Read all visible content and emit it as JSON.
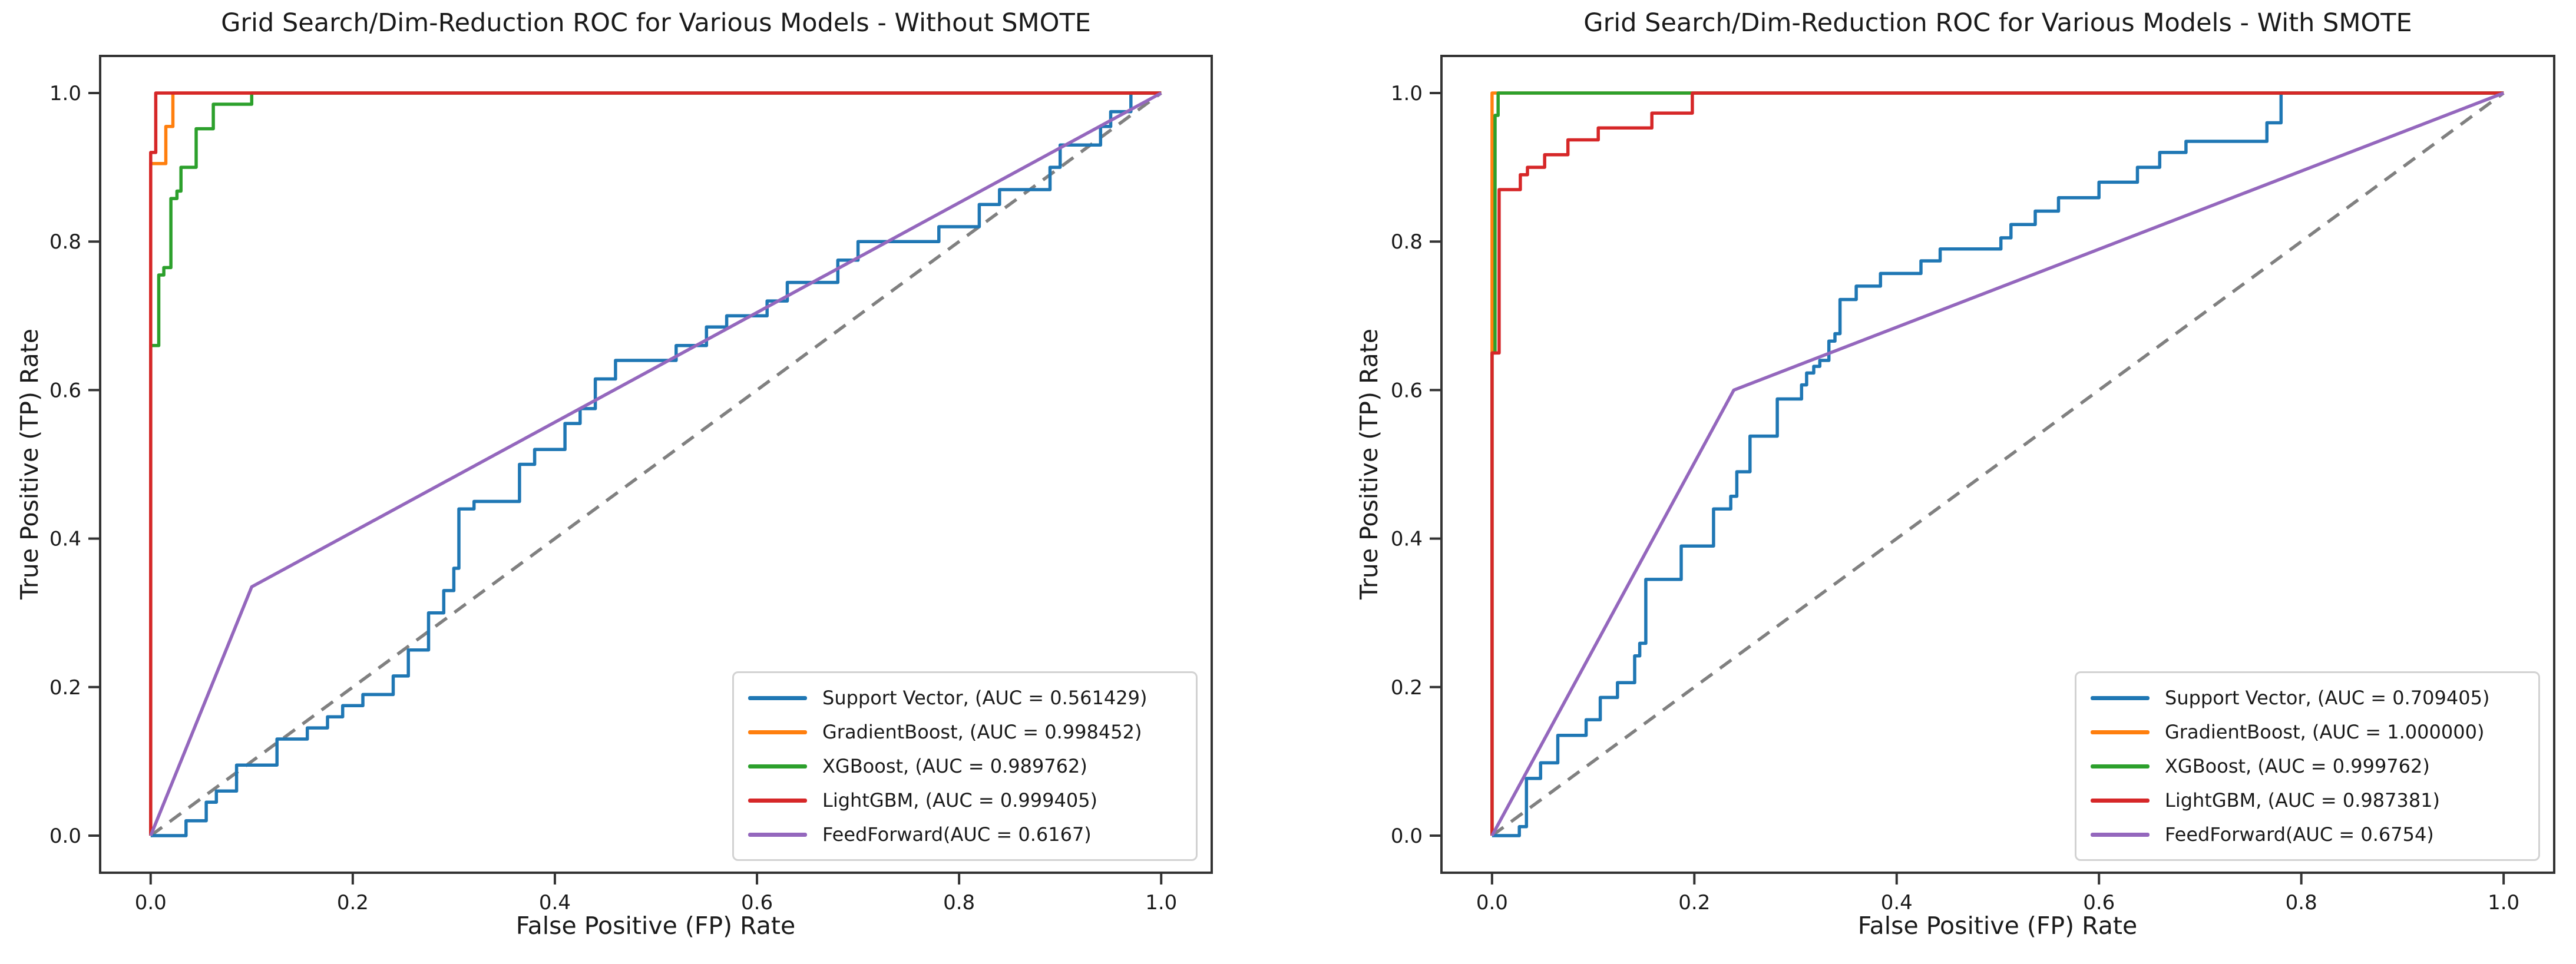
{
  "page": {
    "background": "#ffffff"
  },
  "chart_data": [
    {
      "type": "line",
      "subtype": "roc-curve",
      "title": "Grid Search/Dim-Reduction ROC for Various Models - Without SMOTE",
      "xlabel": "False Positive (FP) Rate",
      "ylabel": "True Positive (TP) Rate",
      "x_ticks": [
        "0.0",
        "0.2",
        "0.4",
        "0.6",
        "0.8",
        "1.0"
      ],
      "y_ticks": [
        "0.0",
        "0.2",
        "0.4",
        "0.6",
        "0.8",
        "1.0"
      ],
      "xlim": [
        -0.05,
        1.05
      ],
      "ylim": [
        -0.05,
        1.05
      ],
      "grid": false,
      "legend_position": "lower right",
      "axis_color": "#333333",
      "chance_line": {
        "key": "chance-diagonal",
        "color": "#808080",
        "dashed": true,
        "points": [
          [
            0,
            0
          ],
          [
            1,
            1
          ]
        ]
      },
      "series": [
        {
          "key": "support-vector",
          "name": "Support Vector",
          "auc": "0.561429",
          "legend_label": "Support Vector, (AUC = 0.561429)",
          "color": "#1f77b4",
          "points": [
            [
              0,
              0
            ],
            [
              0.035,
              0
            ],
            [
              0.035,
              0.02
            ],
            [
              0.055,
              0.02
            ],
            [
              0.055,
              0.045
            ],
            [
              0.065,
              0.045
            ],
            [
              0.065,
              0.06
            ],
            [
              0.085,
              0.06
            ],
            [
              0.085,
              0.095
            ],
            [
              0.125,
              0.095
            ],
            [
              0.125,
              0.13
            ],
            [
              0.155,
              0.13
            ],
            [
              0.155,
              0.145
            ],
            [
              0.175,
              0.145
            ],
            [
              0.175,
              0.16
            ],
            [
              0.19,
              0.16
            ],
            [
              0.19,
              0.175
            ],
            [
              0.21,
              0.175
            ],
            [
              0.21,
              0.19
            ],
            [
              0.24,
              0.19
            ],
            [
              0.24,
              0.215
            ],
            [
              0.255,
              0.215
            ],
            [
              0.255,
              0.25
            ],
            [
              0.275,
              0.25
            ],
            [
              0.275,
              0.3
            ],
            [
              0.29,
              0.3
            ],
            [
              0.29,
              0.33
            ],
            [
              0.3,
              0.33
            ],
            [
              0.3,
              0.36
            ],
            [
              0.305,
              0.36
            ],
            [
              0.305,
              0.44
            ],
            [
              0.32,
              0.44
            ],
            [
              0.32,
              0.45
            ],
            [
              0.365,
              0.45
            ],
            [
              0.365,
              0.5
            ],
            [
              0.38,
              0.5
            ],
            [
              0.38,
              0.52
            ],
            [
              0.41,
              0.52
            ],
            [
              0.41,
              0.555
            ],
            [
              0.425,
              0.555
            ],
            [
              0.425,
              0.575
            ],
            [
              0.44,
              0.575
            ],
            [
              0.44,
              0.615
            ],
            [
              0.46,
              0.615
            ],
            [
              0.46,
              0.64
            ],
            [
              0.52,
              0.64
            ],
            [
              0.52,
              0.66
            ],
            [
              0.55,
              0.66
            ],
            [
              0.55,
              0.685
            ],
            [
              0.57,
              0.685
            ],
            [
              0.57,
              0.7
            ],
            [
              0.61,
              0.7
            ],
            [
              0.61,
              0.72
            ],
            [
              0.63,
              0.72
            ],
            [
              0.63,
              0.745
            ],
            [
              0.68,
              0.745
            ],
            [
              0.68,
              0.775
            ],
            [
              0.7,
              0.775
            ],
            [
              0.7,
              0.8
            ],
            [
              0.78,
              0.8
            ],
            [
              0.78,
              0.82
            ],
            [
              0.82,
              0.82
            ],
            [
              0.82,
              0.85
            ],
            [
              0.84,
              0.85
            ],
            [
              0.84,
              0.87
            ],
            [
              0.89,
              0.87
            ],
            [
              0.89,
              0.9
            ],
            [
              0.9,
              0.9
            ],
            [
              0.9,
              0.93
            ],
            [
              0.94,
              0.93
            ],
            [
              0.94,
              0.955
            ],
            [
              0.95,
              0.955
            ],
            [
              0.95,
              0.975
            ],
            [
              0.97,
              0.975
            ],
            [
              0.97,
              1.0
            ],
            [
              1,
              1
            ]
          ]
        },
        {
          "key": "gradient-boost",
          "name": "GradientBoost",
          "auc": "0.998452",
          "legend_label": "GradientBoost, (AUC = 0.998452)",
          "color": "#ff7f0e",
          "points": [
            [
              0,
              0
            ],
            [
              0,
              0.905
            ],
            [
              0.015,
              0.905
            ],
            [
              0.015,
              0.955
            ],
            [
              0.022,
              0.955
            ],
            [
              0.022,
              1.0
            ],
            [
              1,
              1
            ]
          ]
        },
        {
          "key": "xgboost",
          "name": "XGBoost",
          "auc": "0.989762",
          "legend_label": "XGBoost, (AUC = 0.989762)",
          "color": "#2ca02c",
          "points": [
            [
              0,
              0
            ],
            [
              0,
              0.66
            ],
            [
              0.008,
              0.66
            ],
            [
              0.008,
              0.755
            ],
            [
              0.013,
              0.755
            ],
            [
              0.013,
              0.765
            ],
            [
              0.02,
              0.765
            ],
            [
              0.02,
              0.858
            ],
            [
              0.026,
              0.858
            ],
            [
              0.026,
              0.868
            ],
            [
              0.03,
              0.868
            ],
            [
              0.03,
              0.9
            ],
            [
              0.045,
              0.9
            ],
            [
              0.045,
              0.952
            ],
            [
              0.062,
              0.952
            ],
            [
              0.062,
              0.985
            ],
            [
              0.1,
              0.985
            ],
            [
              0.1,
              1.0
            ],
            [
              1,
              1
            ]
          ]
        },
        {
          "key": "lightgbm",
          "name": "LightGBM",
          "auc": "0.999405",
          "legend_label": "LightGBM, (AUC = 0.999405)",
          "color": "#d62728",
          "points": [
            [
              0,
              0
            ],
            [
              0,
              0.92
            ],
            [
              0.005,
              0.92
            ],
            [
              0.005,
              1.0
            ],
            [
              1,
              1
            ]
          ]
        },
        {
          "key": "feedforward",
          "name": "FeedForward",
          "auc": "0.6167",
          "legend_label": "FeedForward(AUC = 0.6167)",
          "color": "#9467bd",
          "points": [
            [
              0,
              0
            ],
            [
              0.1,
              0.335
            ],
            [
              1,
              1
            ]
          ]
        }
      ]
    },
    {
      "type": "line",
      "subtype": "roc-curve",
      "title": "Grid Search/Dim-Reduction ROC for Various Models - With SMOTE",
      "xlabel": "False Positive (FP) Rate",
      "ylabel": "True Positive (TP) Rate",
      "x_ticks": [
        "0.0",
        "0.2",
        "0.4",
        "0.6",
        "0.8",
        "1.0"
      ],
      "y_ticks": [
        "0.0",
        "0.2",
        "0.4",
        "0.6",
        "0.8",
        "1.0"
      ],
      "xlim": [
        -0.05,
        1.05
      ],
      "ylim": [
        -0.05,
        1.05
      ],
      "grid": false,
      "legend_position": "lower right",
      "axis_color": "#333333",
      "chance_line": {
        "key": "chance-diagonal",
        "color": "#808080",
        "dashed": true,
        "points": [
          [
            0,
            0
          ],
          [
            1,
            1
          ]
        ]
      },
      "series": [
        {
          "key": "support-vector",
          "name": "Support Vector",
          "auc": "0.709405",
          "legend_label": "Support Vector, (AUC = 0.709405)",
          "color": "#1f77b4",
          "points": [
            [
              0,
              0
            ],
            [
              0.027,
              0
            ],
            [
              0.027,
              0.012
            ],
            [
              0.034,
              0.012
            ],
            [
              0.034,
              0.077
            ],
            [
              0.048,
              0.077
            ],
            [
              0.048,
              0.098
            ],
            [
              0.065,
              0.098
            ],
            [
              0.065,
              0.135
            ],
            [
              0.093,
              0.135
            ],
            [
              0.093,
              0.156
            ],
            [
              0.107,
              0.156
            ],
            [
              0.107,
              0.186
            ],
            [
              0.124,
              0.186
            ],
            [
              0.124,
              0.206
            ],
            [
              0.141,
              0.206
            ],
            [
              0.141,
              0.242
            ],
            [
              0.146,
              0.242
            ],
            [
              0.146,
              0.259
            ],
            [
              0.152,
              0.259
            ],
            [
              0.152,
              0.345
            ],
            [
              0.187,
              0.345
            ],
            [
              0.187,
              0.39
            ],
            [
              0.219,
              0.39
            ],
            [
              0.219,
              0.44
            ],
            [
              0.236,
              0.44
            ],
            [
              0.236,
              0.457
            ],
            [
              0.242,
              0.457
            ],
            [
              0.242,
              0.49
            ],
            [
              0.255,
              0.49
            ],
            [
              0.255,
              0.538
            ],
            [
              0.282,
              0.538
            ],
            [
              0.282,
              0.588
            ],
            [
              0.306,
              0.588
            ],
            [
              0.306,
              0.607
            ],
            [
              0.311,
              0.607
            ],
            [
              0.311,
              0.623
            ],
            [
              0.318,
              0.623
            ],
            [
              0.318,
              0.632
            ],
            [
              0.324,
              0.632
            ],
            [
              0.324,
              0.64
            ],
            [
              0.333,
              0.64
            ],
            [
              0.333,
              0.666
            ],
            [
              0.339,
              0.666
            ],
            [
              0.339,
              0.676
            ],
            [
              0.344,
              0.676
            ],
            [
              0.344,
              0.722
            ],
            [
              0.36,
              0.722
            ],
            [
              0.36,
              0.74
            ],
            [
              0.384,
              0.74
            ],
            [
              0.384,
              0.757
            ],
            [
              0.424,
              0.757
            ],
            [
              0.424,
              0.774
            ],
            [
              0.443,
              0.774
            ],
            [
              0.443,
              0.79
            ],
            [
              0.503,
              0.79
            ],
            [
              0.503,
              0.805
            ],
            [
              0.513,
              0.805
            ],
            [
              0.513,
              0.823
            ],
            [
              0.537,
              0.823
            ],
            [
              0.537,
              0.841
            ],
            [
              0.56,
              0.841
            ],
            [
              0.56,
              0.859
            ],
            [
              0.6,
              0.859
            ],
            [
              0.6,
              0.88
            ],
            [
              0.638,
              0.88
            ],
            [
              0.638,
              0.9
            ],
            [
              0.66,
              0.9
            ],
            [
              0.66,
              0.92
            ],
            [
              0.686,
              0.92
            ],
            [
              0.686,
              0.935
            ],
            [
              0.766,
              0.935
            ],
            [
              0.766,
              0.96
            ],
            [
              0.78,
              0.96
            ],
            [
              0.78,
              1.0
            ],
            [
              1,
              1
            ]
          ]
        },
        {
          "key": "gradient-boost",
          "name": "GradientBoost",
          "auc": "1.000000",
          "legend_label": "GradientBoost, (AUC = 1.000000)",
          "color": "#ff7f0e",
          "points": [
            [
              0,
              0
            ],
            [
              0,
              1
            ],
            [
              1,
              1
            ]
          ]
        },
        {
          "key": "xgboost",
          "name": "XGBoost",
          "auc": "0.999762",
          "legend_label": "XGBoost, (AUC = 0.999762)",
          "color": "#2ca02c",
          "points": [
            [
              0,
              0
            ],
            [
              0,
              0.65
            ],
            [
              0.003,
              0.65
            ],
            [
              0.003,
              0.97
            ],
            [
              0.006,
              0.97
            ],
            [
              0.006,
              1.0
            ],
            [
              1,
              1
            ]
          ]
        },
        {
          "key": "lightgbm",
          "name": "LightGBM",
          "auc": "0.987381",
          "legend_label": "LightGBM, (AUC = 0.987381)",
          "color": "#d62728",
          "points": [
            [
              0,
              0
            ],
            [
              0,
              0.65
            ],
            [
              0.007,
              0.65
            ],
            [
              0.007,
              0.87
            ],
            [
              0.028,
              0.87
            ],
            [
              0.028,
              0.89
            ],
            [
              0.035,
              0.89
            ],
            [
              0.035,
              0.9
            ],
            [
              0.052,
              0.9
            ],
            [
              0.052,
              0.917
            ],
            [
              0.075,
              0.917
            ],
            [
              0.075,
              0.937
            ],
            [
              0.105,
              0.937
            ],
            [
              0.105,
              0.953
            ],
            [
              0.158,
              0.953
            ],
            [
              0.158,
              0.973
            ],
            [
              0.198,
              0.973
            ],
            [
              0.198,
              1.0
            ],
            [
              1,
              1
            ]
          ]
        },
        {
          "key": "feedforward",
          "name": "FeedForward",
          "auc": "0.6754",
          "legend_label": "FeedForward(AUC = 0.6754)",
          "color": "#9467bd",
          "points": [
            [
              0,
              0
            ],
            [
              0.239,
              0.6
            ],
            [
              1,
              1
            ]
          ]
        }
      ]
    }
  ]
}
